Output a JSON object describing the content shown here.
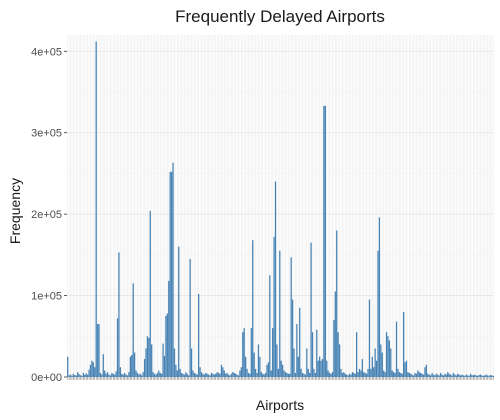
{
  "chart_data": {
    "type": "bar",
    "title": "Frequently Delayed Airports",
    "xlabel": "Airports",
    "ylabel": "Frequency",
    "x_tick_labels_shown": false,
    "ylim": [
      0,
      420000
    ],
    "yticks": [
      0,
      100000,
      200000,
      300000,
      400000
    ],
    "ytick_labels": [
      "0e+00",
      "1e+05",
      "2e+05",
      "3e+05",
      "4e+05"
    ],
    "grid": true,
    "legend": "none",
    "bar_color": "#4682B4",
    "category_count": 300,
    "values": [
      25000,
      2000,
      3000,
      1500,
      4000,
      2500,
      1800,
      6000,
      3500,
      2200,
      1500,
      5000,
      2800,
      4500,
      3000,
      9000,
      15000,
      20000,
      18000,
      12000,
      412000,
      65000,
      65000,
      5000,
      3000,
      28000,
      8000,
      4000,
      6000,
      3000,
      2000,
      5000,
      4000,
      3000,
      7000,
      72000,
      153000,
      12000,
      4000,
      3000,
      5000,
      3000,
      2000,
      6000,
      25000,
      27000,
      115000,
      30000,
      8000,
      5000,
      3000,
      4000,
      2000,
      6000,
      22000,
      35000,
      50000,
      48000,
      204000,
      40000,
      6000,
      4000,
      3000,
      5000,
      8000,
      5000,
      4000,
      41000,
      26000,
      75000,
      78000,
      118000,
      252000,
      252000,
      263000,
      35000,
      15000,
      8000,
      160000,
      10000,
      5000,
      4000,
      3000,
      6000,
      4000,
      2000,
      145000,
      35000,
      8000,
      5000,
      4000,
      3000,
      102000,
      12000,
      6000,
      4000,
      3000,
      5000,
      4000,
      3000,
      2000,
      5000,
      4000,
      3000,
      4000,
      6000,
      5000,
      4000,
      15000,
      12000,
      8000,
      4000,
      5000,
      3000,
      2000,
      4000,
      6000,
      5000,
      4000,
      3000,
      2000,
      8000,
      12000,
      55000,
      60000,
      25000,
      10000,
      5000,
      4000,
      60000,
      168000,
      30000,
      10000,
      5000,
      40000,
      25000,
      6000,
      4000,
      3000,
      5000,
      15000,
      18000,
      125000,
      8000,
      60000,
      172000,
      240000,
      40000,
      10000,
      155000,
      20000,
      15000,
      8000,
      6000,
      5000,
      4000,
      4000,
      147000,
      95000,
      35000,
      5000,
      65000,
      25000,
      85000,
      10000,
      5000,
      4000,
      3000,
      35000,
      10000,
      5000,
      165000,
      55000,
      10000,
      5000,
      58000,
      20000,
      25000,
      20000,
      22000,
      333000,
      333000,
      20000,
      8000,
      5000,
      4000,
      6000,
      70000,
      105000,
      180000,
      55000,
      40000,
      10000,
      5000,
      6000,
      4000,
      3000,
      2000,
      4000,
      3000,
      6000,
      5000,
      4000,
      55000,
      6000,
      10000,
      8000,
      22000,
      6000,
      5000,
      4000,
      10000,
      95000,
      10000,
      25000,
      12000,
      35000,
      20000,
      155000,
      196000,
      40000,
      30000,
      8000,
      6000,
      55000,
      50000,
      45000,
      35000,
      8000,
      6000,
      5000,
      68000,
      10000,
      6000,
      5000,
      4000,
      80000,
      18000,
      20000,
      6000,
      5000,
      4000,
      3000,
      2000,
      5000,
      4000,
      8000,
      6000,
      5000,
      4000,
      3000,
      12000,
      15000,
      4000,
      3000,
      2000,
      5000,
      3000,
      2000,
      4000,
      3000,
      2000,
      5000,
      3000,
      2000,
      4000,
      3000,
      6000,
      4000,
      3000,
      2000,
      5000,
      3000,
      2000,
      4000,
      3000,
      2000,
      3000,
      2000,
      1500,
      3000,
      2000,
      1500,
      4000,
      2500,
      2000,
      3000,
      2000,
      1500,
      2500,
      3000,
      2000,
      1500,
      2000,
      3000,
      2000,
      1500,
      2500,
      2000,
      1500
    ]
  }
}
